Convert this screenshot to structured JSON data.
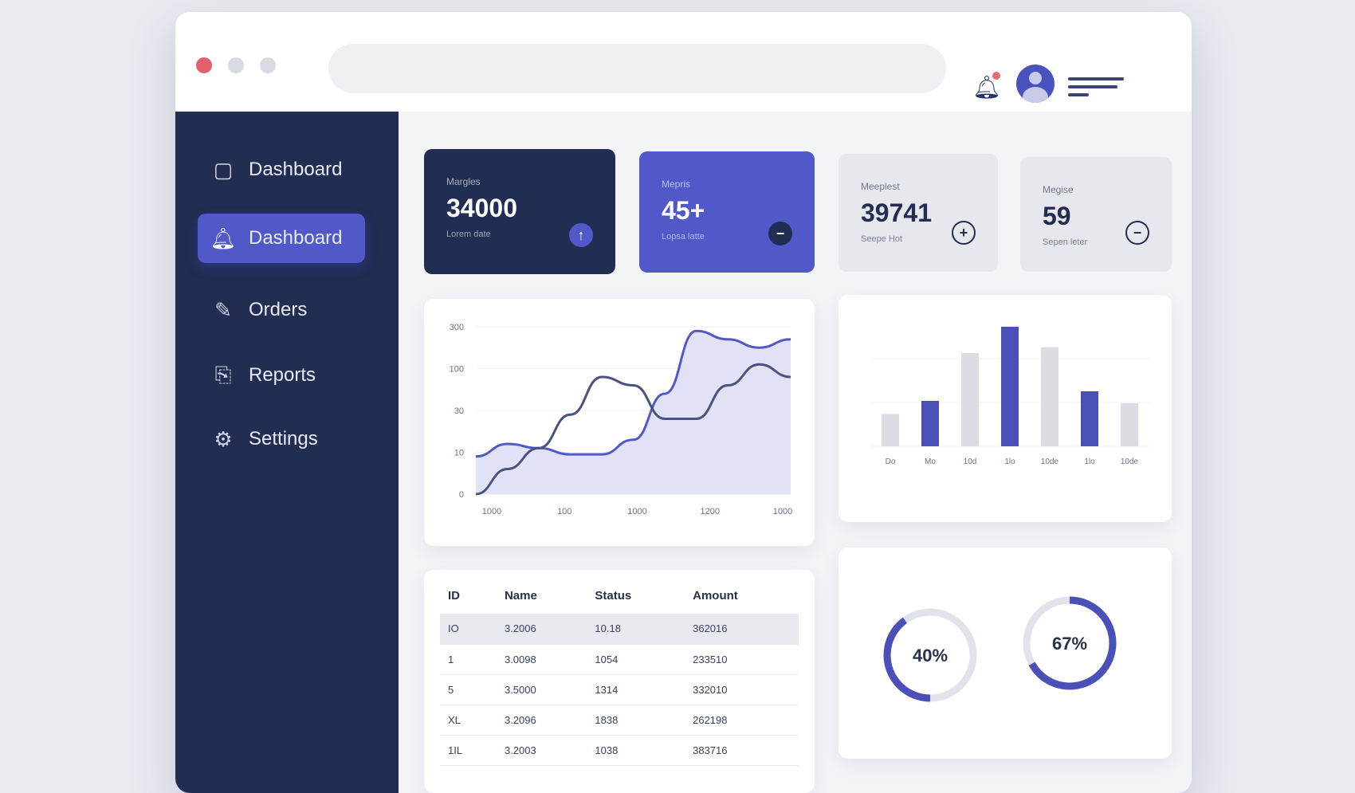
{
  "topbar": {
    "notification_icon": "bell-icon",
    "avatar_icon": "user-avatar",
    "menu_icon": "hamburger-menu-icon",
    "window_dots": [
      "#e5606d",
      "#d9dbe2",
      "#d9dbe2"
    ]
  },
  "sidebar": {
    "items": [
      {
        "label": "Dashboard",
        "icon": "square-icon",
        "active": false
      },
      {
        "label": "Dashboard",
        "icon": "bell-icon",
        "active": true
      },
      {
        "label": "Orders",
        "icon": "pencil-icon",
        "active": false
      },
      {
        "label": "Reports",
        "icon": "report-icon",
        "active": false
      },
      {
        "label": "Settings",
        "icon": "gear-icon",
        "active": false
      }
    ]
  },
  "stats": [
    {
      "label": "Margles",
      "value": "34000",
      "sub": "Lorem date",
      "icon": "arrow-up-icon"
    },
    {
      "label": "Mepris",
      "value": "45+",
      "sub": "Lopsa latte",
      "icon": "minus-icon"
    },
    {
      "label": "Meeplest",
      "value": "39741",
      "sub": "Seepe Hot",
      "icon": "plus-icon"
    },
    {
      "label": "Megise",
      "value": "59",
      "sub": "Sepen leter",
      "icon": "minus-icon"
    }
  ],
  "colors": {
    "accent": "#5159c9",
    "navy": "#222d52",
    "dark_series": "#4b5180"
  },
  "chart_data": [
    {
      "type": "area",
      "y_ticks": [
        "300",
        "100",
        "30",
        "10",
        "0"
      ],
      "y_tick_values": [
        300,
        100,
        30,
        10,
        0
      ],
      "x_ticks": [
        "1000",
        "100",
        "1000",
        "1200",
        "1000"
      ],
      "series": [
        {
          "values": [
            9,
            14,
            12,
            9.5,
            9.5,
            16,
            58,
            280,
            240,
            200,
            240
          ]
        },
        {
          "values": [
            0,
            6,
            12,
            28,
            86,
            72,
            26,
            26,
            72,
            120,
            86
          ]
        }
      ]
    },
    {
      "type": "bar",
      "categories": [
        "Do",
        "Mo",
        "10d",
        "1lo",
        "10de",
        "1lo",
        "10de"
      ],
      "values": [
        27,
        38,
        78,
        100,
        83,
        46,
        36
      ],
      "highlight": [
        false,
        true,
        false,
        true,
        false,
        true,
        false
      ]
    },
    {
      "type": "pie",
      "values": [
        40,
        67
      ],
      "labels": [
        "40%",
        "67%"
      ]
    }
  ],
  "table": {
    "headers": [
      "ID",
      "Name",
      "Status",
      "Amount"
    ],
    "rows": [
      [
        "IO",
        "3.2006",
        "10.18",
        "362016"
      ],
      [
        "1",
        "3.0098",
        "1054",
        "233510"
      ],
      [
        "5",
        "3.5000",
        "1314",
        "332010"
      ],
      [
        "XL",
        "3.2096",
        "1838",
        "262198"
      ],
      [
        "1IL",
        "3.2003",
        "1038",
        "383716"
      ]
    ]
  }
}
